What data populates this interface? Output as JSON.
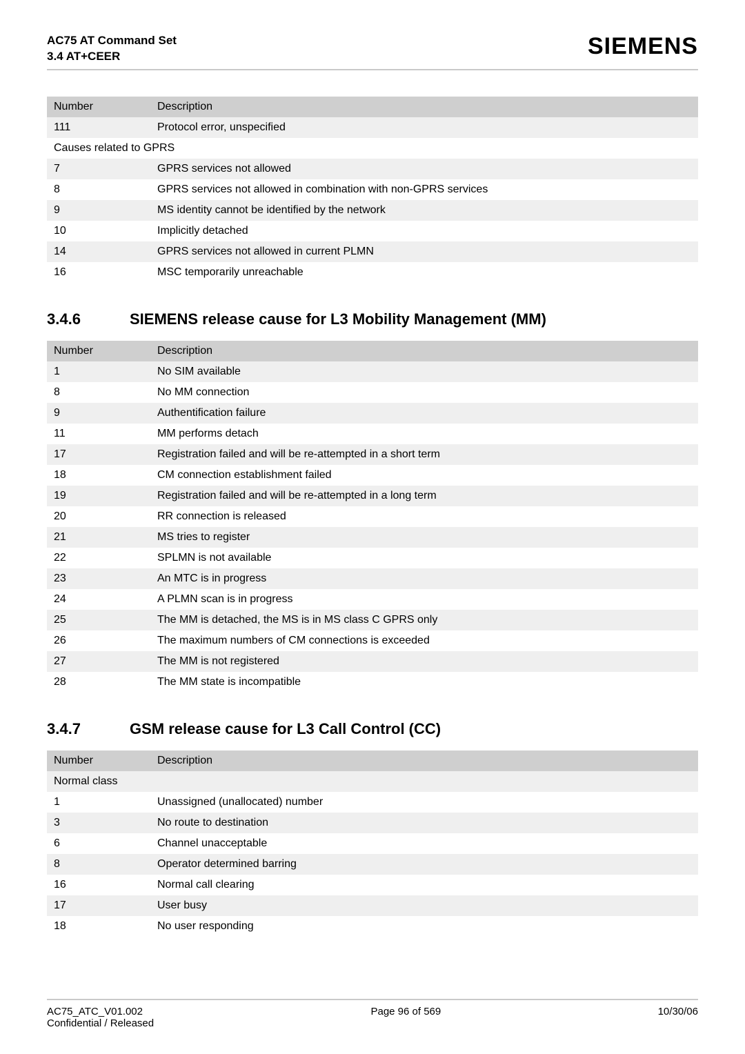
{
  "header": {
    "title_line1": "AC75 AT Command Set",
    "title_line2": "3.4 AT+CEER",
    "brand": "SIEMENS"
  },
  "colors": {
    "header_row_bg": "#cfcfcf",
    "odd_row_bg": "#efefef",
    "even_row_bg": "#ffffff",
    "rule": "#c9c9c9"
  },
  "table1": {
    "columns": [
      "Number",
      "Description"
    ],
    "rows": [
      {
        "num": "111",
        "desc": "Protocol error, unspecified",
        "parity": "odd"
      },
      {
        "section": "Causes related to GPRS",
        "parity": "even"
      },
      {
        "num": "7",
        "desc": "GPRS services not allowed",
        "parity": "odd"
      },
      {
        "num": "8",
        "desc": "GPRS services not allowed in combination with non-GPRS services",
        "parity": "even"
      },
      {
        "num": "9",
        "desc": "MS identity cannot be identified by the network",
        "parity": "odd"
      },
      {
        "num": "10",
        "desc": "Implicitly detached",
        "parity": "even"
      },
      {
        "num": "14",
        "desc": "GPRS services not allowed in current PLMN",
        "parity": "odd"
      },
      {
        "num": "16",
        "desc": "MSC temporarily unreachable",
        "parity": "even"
      }
    ]
  },
  "section346": {
    "num": "3.4.6",
    "title": "SIEMENS release cause for L3 Mobility Management (MM)"
  },
  "table2": {
    "columns": [
      "Number",
      "Description"
    ],
    "rows": [
      {
        "num": "1",
        "desc": "No SIM available",
        "parity": "odd"
      },
      {
        "num": "8",
        "desc": "No MM connection",
        "parity": "even"
      },
      {
        "num": "9",
        "desc": "Authentification failure",
        "parity": "odd"
      },
      {
        "num": "11",
        "desc": "MM performs detach",
        "parity": "even"
      },
      {
        "num": "17",
        "desc": "Registration failed and will be re-attempted in a short term",
        "parity": "odd"
      },
      {
        "num": "18",
        "desc": "CM connection establishment failed",
        "parity": "even"
      },
      {
        "num": "19",
        "desc": "Registration failed and will be re-attempted in a long term",
        "parity": "odd"
      },
      {
        "num": "20",
        "desc": "RR connection is released",
        "parity": "even"
      },
      {
        "num": "21",
        "desc": "MS tries to register",
        "parity": "odd"
      },
      {
        "num": "22",
        "desc": "SPLMN is not available",
        "parity": "even"
      },
      {
        "num": "23",
        "desc": "An MTC is in progress",
        "parity": "odd"
      },
      {
        "num": "24",
        "desc": "A PLMN scan is in progress",
        "parity": "even"
      },
      {
        "num": "25",
        "desc": "The MM is detached, the MS is in MS class C GPRS only",
        "parity": "odd"
      },
      {
        "num": "26",
        "desc": "The maximum numbers of CM connections is exceeded",
        "parity": "even"
      },
      {
        "num": "27",
        "desc": "The MM is not registered",
        "parity": "odd"
      },
      {
        "num": "28",
        "desc": "The MM state is incompatible",
        "parity": "even"
      }
    ]
  },
  "section347": {
    "num": "3.4.7",
    "title": "GSM release cause for L3 Call Control (CC)"
  },
  "table3": {
    "columns": [
      "Number",
      "Description"
    ],
    "rows": [
      {
        "section": "Normal class",
        "parity": "odd"
      },
      {
        "num": "1",
        "desc": "Unassigned (unallocated) number",
        "parity": "even"
      },
      {
        "num": "3",
        "desc": "No route to destination",
        "parity": "odd"
      },
      {
        "num": "6",
        "desc": "Channel unacceptable",
        "parity": "even"
      },
      {
        "num": "8",
        "desc": "Operator determined barring",
        "parity": "odd"
      },
      {
        "num": "16",
        "desc": "Normal call clearing",
        "parity": "even"
      },
      {
        "num": "17",
        "desc": "User busy",
        "parity": "odd"
      },
      {
        "num": "18",
        "desc": "No user responding",
        "parity": "even"
      }
    ]
  },
  "footer": {
    "left_line1": "AC75_ATC_V01.002",
    "left_line2": "Confidential / Released",
    "center": "Page 96 of 569",
    "right": "10/30/06"
  }
}
